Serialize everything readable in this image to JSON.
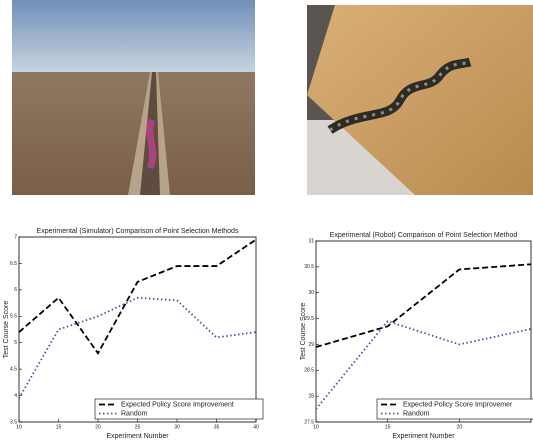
{
  "chart_data": [
    {
      "type": "line",
      "title": "Experimental (Simulator) Comparison of Point Selection Methods",
      "x_label": "Experiment Number",
      "y_label": "Test Course Score",
      "x": [
        10,
        15,
        20,
        25,
        30,
        35,
        40
      ],
      "series": [
        {
          "name": "Expected Policy Score Improvement",
          "color": "#000000",
          "dash": "dashed",
          "values": [
            5.2,
            5.85,
            4.8,
            6.15,
            6.45,
            6.45,
            6.95
          ]
        },
        {
          "name": "Random",
          "color": "#4455aa",
          "dash": "dotted",
          "values": [
            3.95,
            5.25,
            5.5,
            5.85,
            5.8,
            5.1,
            5.2
          ]
        }
      ],
      "xlim": [
        10,
        40
      ],
      "xticks": [
        10,
        15,
        20,
        25,
        30,
        35,
        40
      ],
      "ylim": [
        3.5,
        7
      ],
      "yticks": [
        3.5,
        4,
        4.5,
        5,
        5.5,
        6,
        6.5,
        7
      ],
      "legend": "lower right"
    },
    {
      "type": "line",
      "title": "Experimental (Robot) Comparison of Point Selection Method",
      "x_label": "Experiment Number",
      "y_label": "Test Course Score",
      "x": [
        10,
        15,
        20,
        25
      ],
      "series": [
        {
          "name": "Expected Policy Score Improvemer",
          "color": "#000000",
          "dash": "dashed",
          "values": [
            28.95,
            29.35,
            30.45,
            30.55
          ]
        },
        {
          "name": "Random",
          "color": "#4455aa",
          "dash": "dotted",
          "values": [
            27.75,
            29.45,
            29.0,
            29.3
          ]
        }
      ],
      "xlim": [
        10,
        25
      ],
      "xticks": [
        10,
        15,
        20
      ],
      "ylim": [
        27.5,
        31
      ],
      "yticks": [
        27.5,
        28,
        28.5,
        29,
        29.5,
        30,
        30.5,
        31
      ],
      "legend": "lower right"
    }
  ]
}
